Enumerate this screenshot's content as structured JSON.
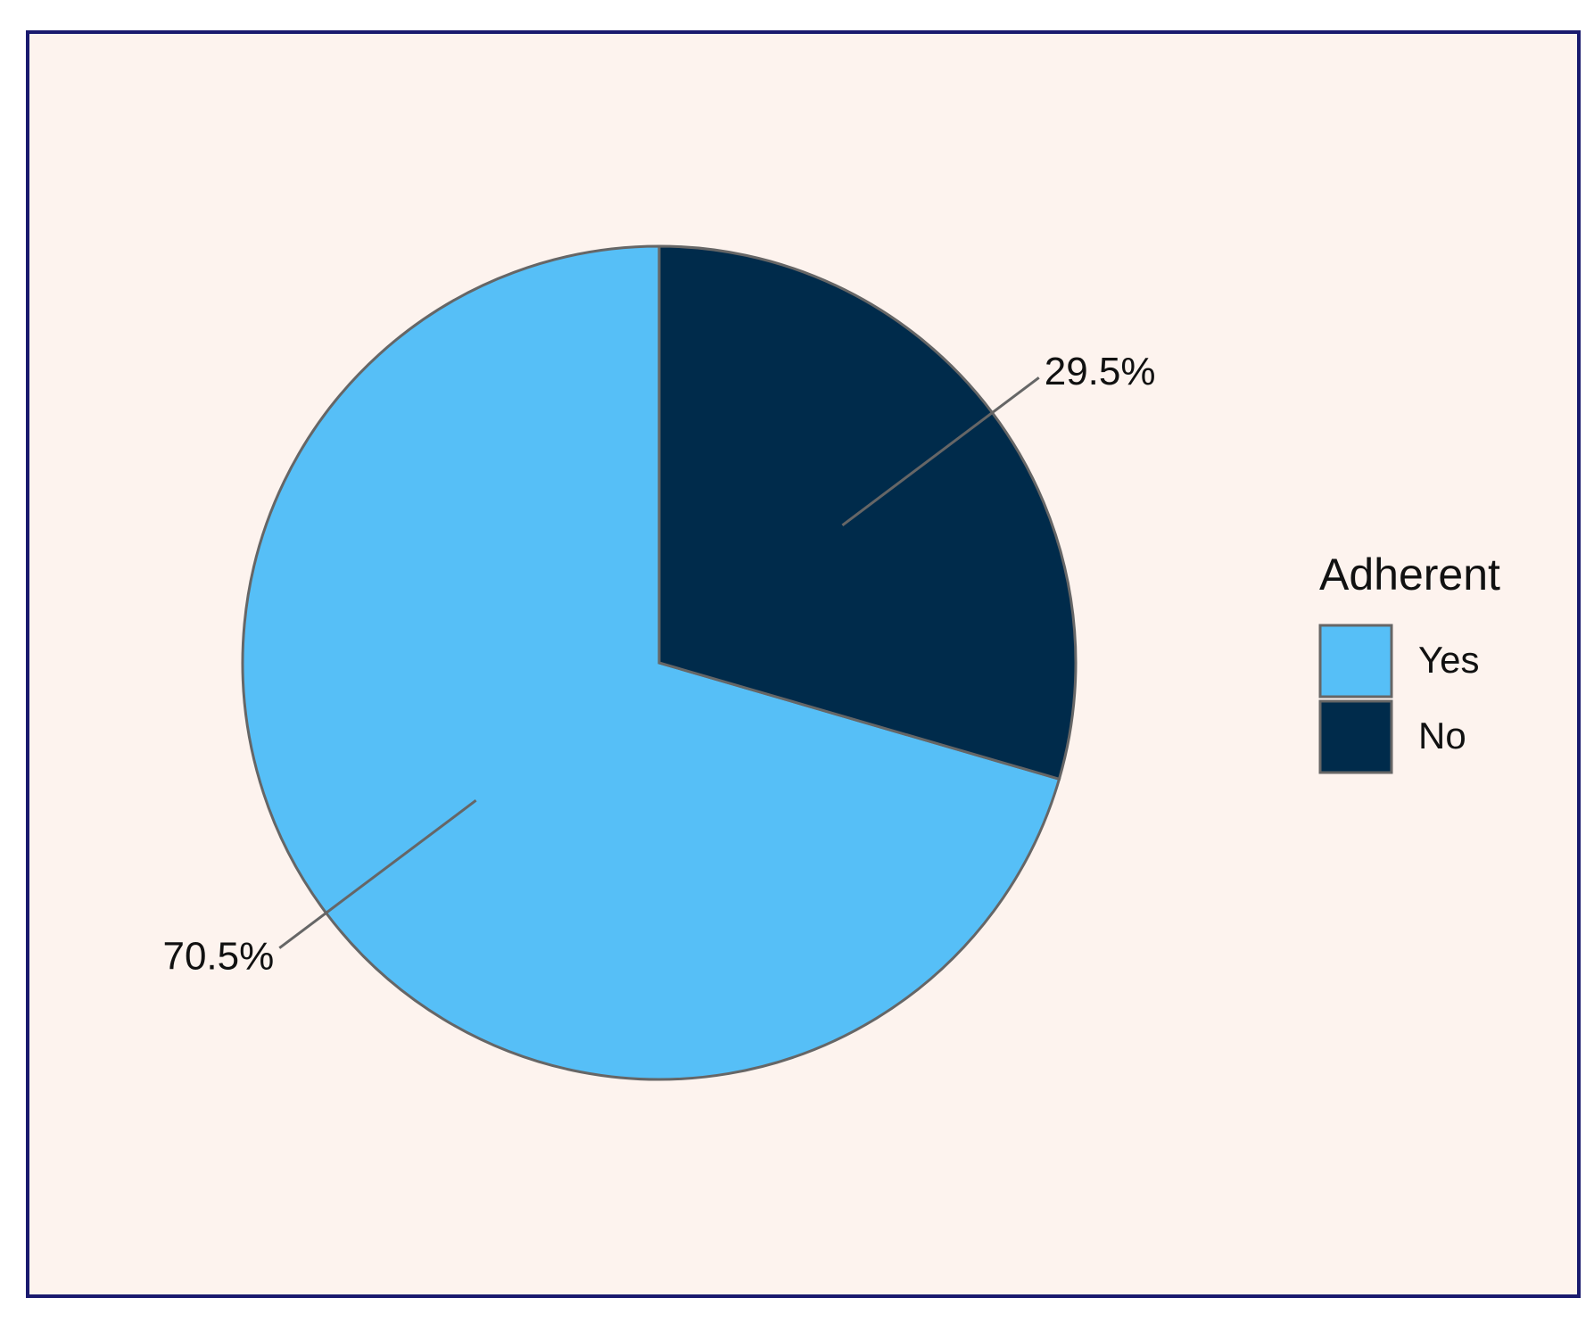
{
  "chart_data": {
    "type": "pie",
    "categories": [
      "Yes",
      "No"
    ],
    "values": [
      70.5,
      29.5
    ],
    "value_labels": [
      "70.5%",
      "29.5%"
    ],
    "colors": [
      "#56bff7",
      "#002b4b"
    ],
    "legend_title": "Adherent",
    "legend": "right"
  }
}
